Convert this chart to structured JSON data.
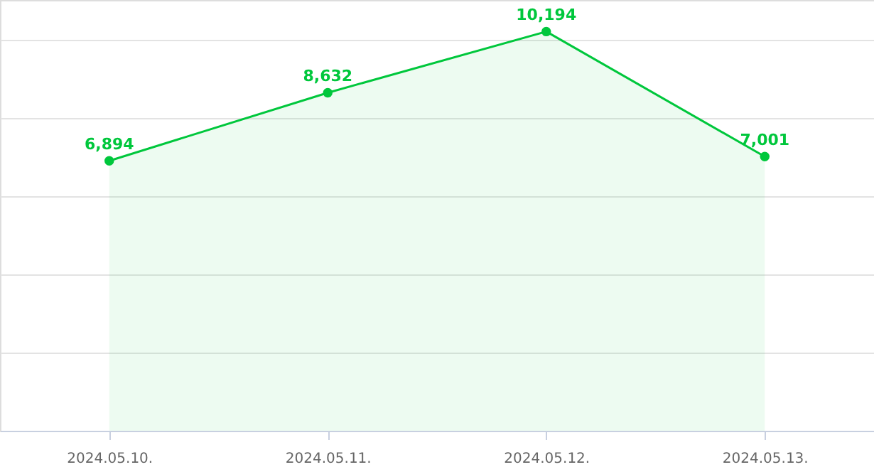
{
  "chart_data": {
    "type": "area",
    "categories": [
      "2024.05.10.",
      "2024.05.11.",
      "2024.05.12.",
      "2024.05.13."
    ],
    "series": [
      {
        "color": "#00c73c",
        "values": [
          6894,
          8632,
          10194,
          7001
        ],
        "value_labels": [
          "6,894",
          "8,632",
          "10,194",
          "7,001"
        ]
      }
    ],
    "grid": "y",
    "tick_labels": "x",
    "marker": "circle"
  }
}
